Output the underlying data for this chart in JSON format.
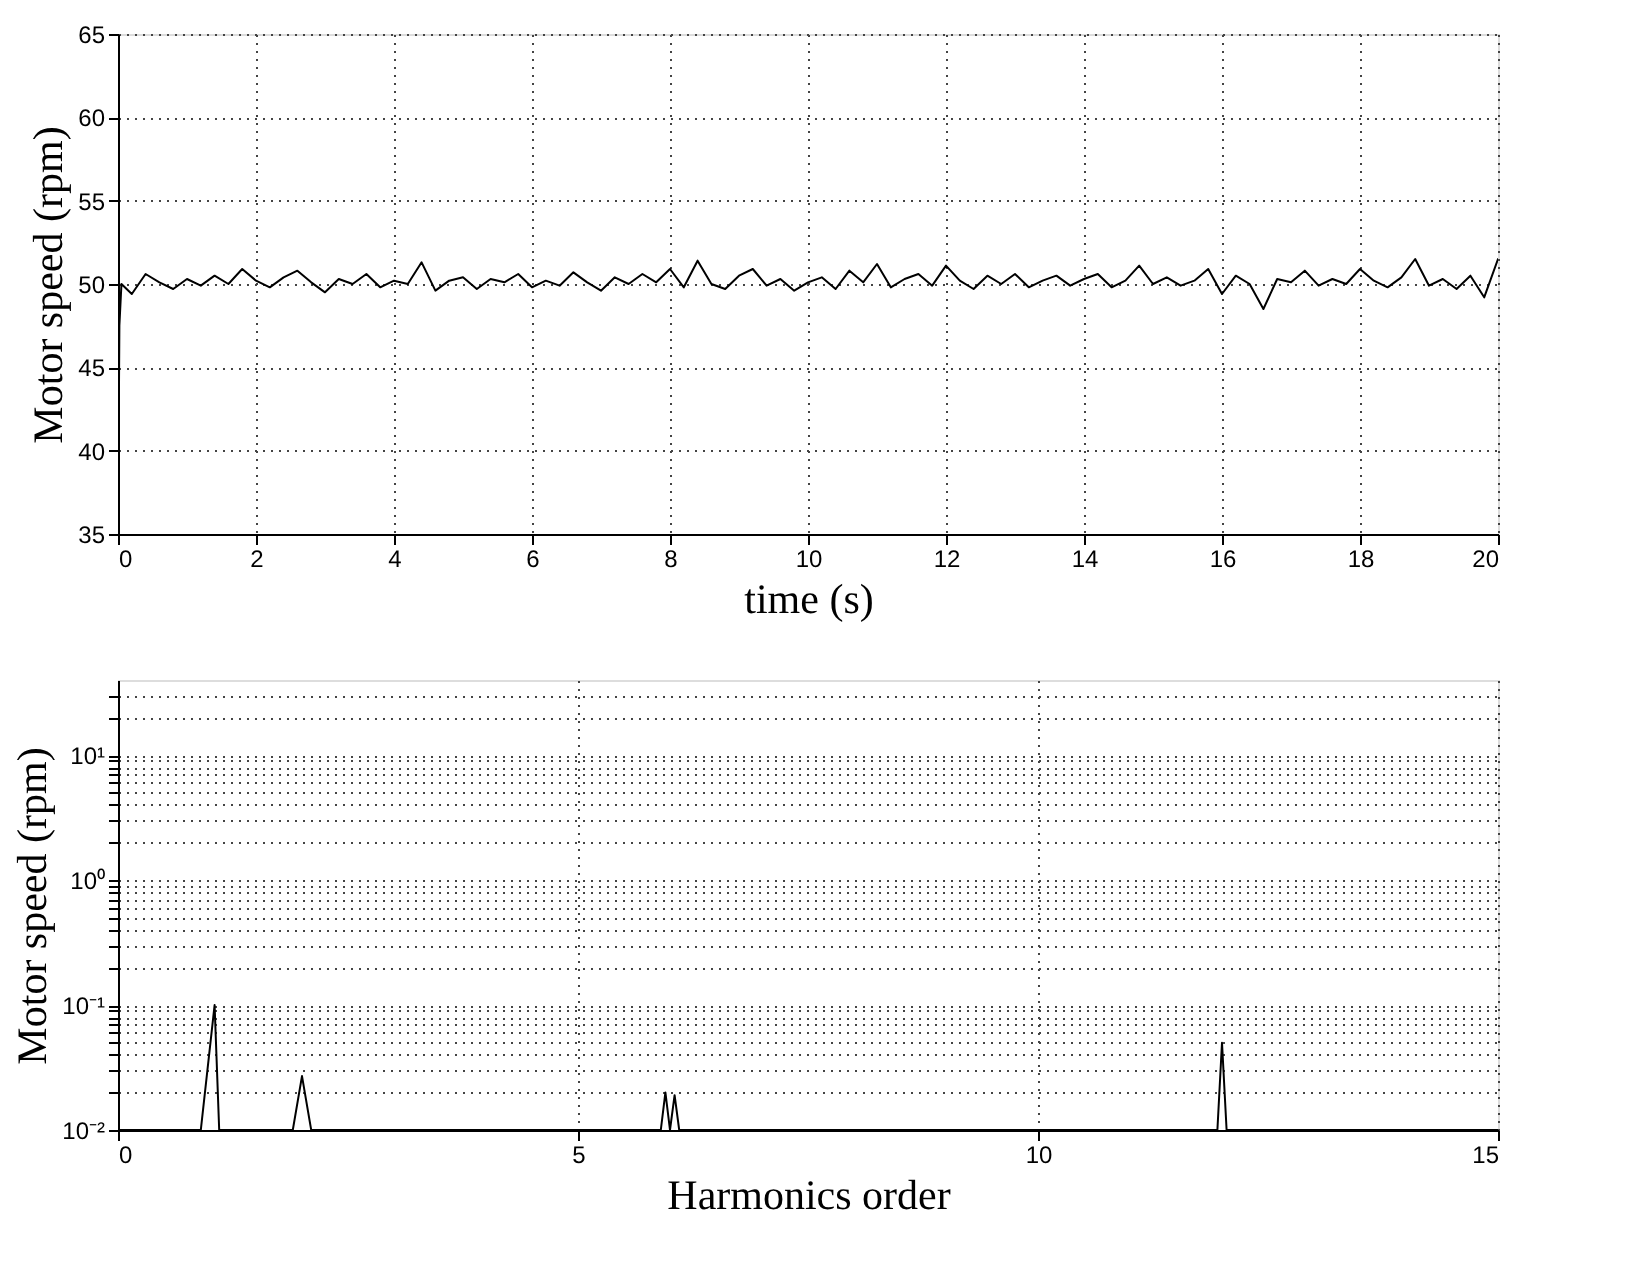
{
  "chart_data": [
    {
      "type": "line",
      "xlabel": "time (s)",
      "ylabel": "Motor speed (rpm)",
      "xlim": [
        0,
        20
      ],
      "ylim": [
        35,
        65
      ],
      "xticks": [
        0,
        2,
        4,
        6,
        8,
        10,
        12,
        14,
        16,
        18,
        20
      ],
      "yticks": [
        35,
        40,
        45,
        50,
        55,
        60,
        65
      ],
      "grid": true,
      "line_style": "solid",
      "series": [
        {
          "color": "#000000",
          "x": [
            0,
            0.02,
            0.05,
            0.2,
            0.4,
            0.6,
            0.8,
            1.0,
            1.2,
            1.4,
            1.6,
            1.8,
            2.0,
            2.2,
            2.4,
            2.6,
            2.8,
            3.0,
            3.2,
            3.4,
            3.6,
            3.8,
            4.0,
            4.2,
            4.4,
            4.6,
            4.8,
            5.0,
            5.2,
            5.4,
            5.6,
            5.8,
            6.0,
            6.2,
            6.4,
            6.6,
            6.8,
            7.0,
            7.2,
            7.4,
            7.6,
            7.8,
            8.0,
            8.2,
            8.4,
            8.6,
            8.8,
            9.0,
            9.2,
            9.4,
            9.6,
            9.8,
            10.0,
            10.2,
            10.4,
            10.6,
            10.8,
            11.0,
            11.2,
            11.4,
            11.6,
            11.8,
            12.0,
            12.2,
            12.4,
            12.6,
            12.8,
            13.0,
            13.2,
            13.4,
            13.6,
            13.8,
            14.0,
            14.2,
            14.4,
            14.6,
            14.8,
            15.0,
            15.2,
            15.4,
            15.6,
            15.8,
            16.0,
            16.2,
            16.4,
            16.6,
            16.8,
            17.0,
            17.2,
            17.4,
            17.6,
            17.8,
            18.0,
            18.2,
            18.4,
            18.6,
            18.8,
            19.0,
            19.2,
            19.4,
            19.6,
            19.8,
            20.0
          ],
          "values": [
            35,
            47.5,
            50,
            49.4,
            50.6,
            50.1,
            49.7,
            50.3,
            49.9,
            50.5,
            50.0,
            50.9,
            50.2,
            49.8,
            50.4,
            50.8,
            50.1,
            49.5,
            50.3,
            50.0,
            50.6,
            49.8,
            50.2,
            50.0,
            51.3,
            49.6,
            50.2,
            50.4,
            49.7,
            50.3,
            50.1,
            50.6,
            49.8,
            50.2,
            49.9,
            50.7,
            50.1,
            49.6,
            50.4,
            50.0,
            50.6,
            50.1,
            50.9,
            49.8,
            51.4,
            50.0,
            49.7,
            50.5,
            50.9,
            49.9,
            50.3,
            49.6,
            50.1,
            50.4,
            49.7,
            50.8,
            50.1,
            51.2,
            49.8,
            50.3,
            50.6,
            49.9,
            51.1,
            50.2,
            49.7,
            50.5,
            50.0,
            50.6,
            49.8,
            50.2,
            50.5,
            49.9,
            50.3,
            50.6,
            49.8,
            50.2,
            51.1,
            50.0,
            50.4,
            49.9,
            50.2,
            50.9,
            49.4,
            50.5,
            50.0,
            48.5,
            50.3,
            50.1,
            50.8,
            49.9,
            50.3,
            50.0,
            50.9,
            50.2,
            49.8,
            50.4,
            51.5,
            49.9,
            50.3,
            49.7,
            50.5,
            49.2,
            51.5
          ]
        }
      ]
    },
    {
      "type": "line",
      "xlabel": "Harmonics order",
      "ylabel": "Motor speed (rpm)",
      "xlim": [
        0,
        15
      ],
      "ylim": [
        0.01,
        40
      ],
      "log": "y",
      "grid": true,
      "line_style": "solid",
      "xticks": [
        0,
        5,
        10,
        15
      ],
      "yticks": [
        {
          "value": 0.01,
          "label": "10⁻²"
        },
        {
          "value": 0.02,
          "label": null
        },
        {
          "value": 0.03,
          "label": null
        },
        {
          "value": 0.04,
          "label": null
        },
        {
          "value": 0.05,
          "label": null
        },
        {
          "value": 0.06,
          "label": null
        },
        {
          "value": 0.07,
          "label": null
        },
        {
          "value": 0.08,
          "label": null
        },
        {
          "value": 0.09,
          "label": null
        },
        {
          "value": 0.1,
          "label": "10⁻¹"
        },
        {
          "value": 0.2,
          "label": null
        },
        {
          "value": 0.3,
          "label": null
        },
        {
          "value": 0.4,
          "label": null
        },
        {
          "value": 0.5,
          "label": null
        },
        {
          "value": 0.6,
          "label": null
        },
        {
          "value": 0.7,
          "label": null
        },
        {
          "value": 0.8,
          "label": null
        },
        {
          "value": 0.9,
          "label": null
        },
        {
          "value": 1,
          "label": "10⁰"
        },
        {
          "value": 2,
          "label": null
        },
        {
          "value": 3,
          "label": null
        },
        {
          "value": 4,
          "label": null
        },
        {
          "value": 5,
          "label": null
        },
        {
          "value": 6,
          "label": null
        },
        {
          "value": 7,
          "label": null
        },
        {
          "value": 8,
          "label": null
        },
        {
          "value": 9,
          "label": null
        },
        {
          "value": 10,
          "label": "10¹"
        },
        {
          "value": 20,
          "label": null
        },
        {
          "value": 30,
          "label": null
        }
      ],
      "series": [
        {
          "color": "#000000",
          "x": [
            0,
            0.9,
            1.05,
            1.1,
            1.9,
            2.0,
            2.1,
            5.9,
            5.95,
            6.0,
            6.05,
            6.1,
            11.95,
            12.0,
            12.05,
            15
          ],
          "values": [
            0.01,
            0.01,
            0.1,
            0.01,
            0.01,
            0.027,
            0.01,
            0.01,
            0.02,
            0.01,
            0.019,
            0.01,
            0.01,
            0.05,
            0.01,
            0.01
          ]
        }
      ]
    }
  ]
}
